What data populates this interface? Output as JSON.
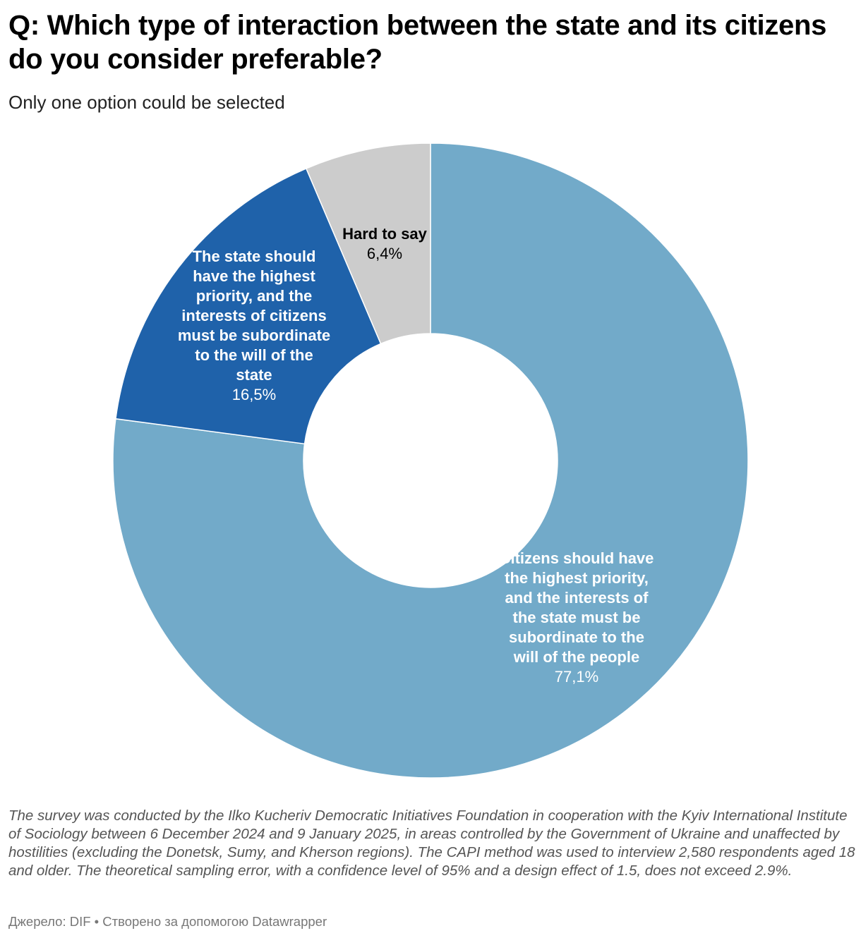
{
  "header": {
    "title": "Q: Which type of interaction between the state and its citizens do you consider preferable?",
    "subtitle": "Only one option could be selected"
  },
  "chart_data": {
    "type": "pie",
    "variant": "donut",
    "categories": [
      "Citizens should have the highest priority, and the interests of the state must be subordinate to the will of the people",
      "The state should have the highest priority, and the interests of citizens must be subordinate to the will of the state",
      "Hard to say"
    ],
    "values": [
      77.1,
      16.5,
      6.4
    ],
    "value_labels": [
      "77,1%",
      "16,5%",
      "6,4%"
    ],
    "colors": [
      "#72aac9",
      "#1f62aa",
      "#cccccc"
    ],
    "label_colors": [
      "#ffffff",
      "#ffffff",
      "#000000"
    ],
    "start": "12 o'clock",
    "direction": "clockwise"
  },
  "footer": {
    "notes": "The survey was conducted by the Ilko Kucheriv Democratic Initiatives Foundation in cooperation with the Kyiv International Institute of Sociology between 6 December 2024 and 9 January 2025, in areas controlled by the Government of Ukraine and unaffected by hostilities (excluding the Donetsk, Sumy, and Kherson regions). The CAPI method was used to interview 2,580 respondents aged 18 and older. The theoretical sampling error, with a confidence level of 95% and a design effect of 1.5, does not exceed 2.9%.",
    "source": "Джерело: DIF • Створено за допомогою Datawrapper"
  }
}
